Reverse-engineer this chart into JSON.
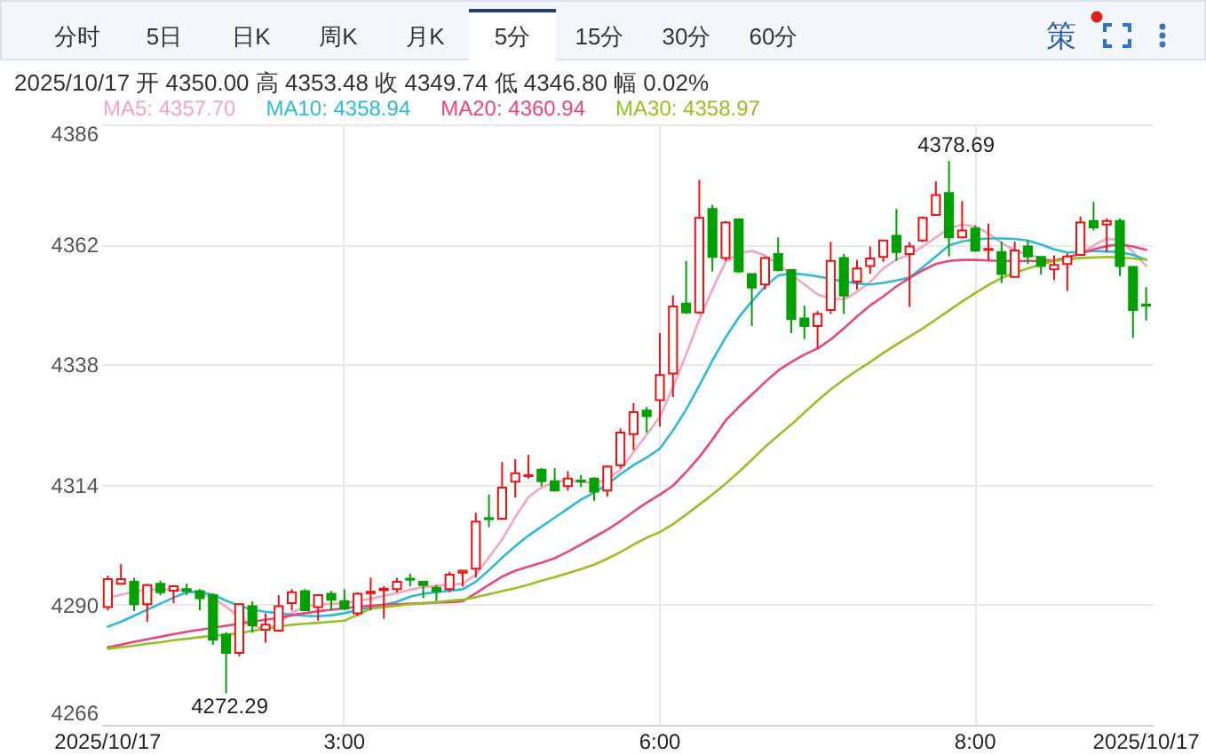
{
  "chart_data": {
    "type": "candlestick",
    "title": "2025/10/17 开 4350.00 高 4353.48 收 4349.74 低 4346.80 幅 0.02%",
    "categories": [
      "2025/10/17",
      null,
      null,
      null,
      null,
      null,
      null,
      null,
      null,
      null,
      null,
      null,
      null,
      null,
      null,
      null,
      null,
      null,
      "3:00",
      null,
      null,
      null,
      null,
      null,
      null,
      null,
      null,
      null,
      null,
      null,
      null,
      null,
      null,
      null,
      null,
      null,
      null,
      null,
      null,
      null,
      null,
      null,
      "6:00",
      null,
      null,
      null,
      null,
      null,
      null,
      null,
      null,
      null,
      null,
      null,
      null,
      null,
      null,
      null,
      null,
      null,
      null,
      null,
      null,
      null,
      null,
      null,
      "8:00",
      null,
      null,
      null,
      null,
      null,
      null,
      null,
      null,
      null,
      null,
      null,
      null,
      "2025/10/17"
    ],
    "ohlc": [
      [
        4289.5,
        4295.8,
        4288.9,
        4295.1
      ],
      [
        4294.2,
        4298.1,
        4294.0,
        4295.1
      ],
      [
        4294.6,
        4295.4,
        4288.7,
        4290.1
      ],
      [
        4290.1,
        4294.2,
        4286.6,
        4293.9
      ],
      [
        4294.2,
        4294.8,
        4291.9,
        4292.5
      ],
      [
        4292.8,
        4293.9,
        4290.3,
        4293.7
      ],
      [
        4293.1,
        4294.2,
        4291.9,
        4292.7
      ],
      [
        4292.7,
        4293.1,
        4288.9,
        4291.3
      ],
      [
        4291.9,
        4292.2,
        4282.0,
        4283.0
      ],
      [
        4284.0,
        4284.5,
        4272.29,
        4280.4
      ],
      [
        4280.4,
        4290.3,
        4279.7,
        4290.1
      ],
      [
        4289.7,
        4290.7,
        4284.4,
        4285.9
      ],
      [
        4285.0,
        4288.3,
        4282.4,
        4286.0
      ],
      [
        4284.8,
        4291.9,
        4284.8,
        4289.7
      ],
      [
        4290.3,
        4293.1,
        4288.9,
        4292.5
      ],
      [
        4292.7,
        4293.1,
        4288.7,
        4288.9
      ],
      [
        4289.5,
        4292.0,
        4286.8,
        4291.9
      ],
      [
        4292.2,
        4292.7,
        4288.9,
        4291.0
      ],
      [
        4290.7,
        4293.1,
        4288.9,
        4289.2
      ],
      [
        4288.3,
        4292.5,
        4287.7,
        4292.2
      ],
      [
        4292.3,
        4295.4,
        4288.9,
        4292.6
      ],
      [
        4292.9,
        4293.7,
        4287.2,
        4293.2
      ],
      [
        4293.1,
        4295.4,
        4292.5,
        4294.6
      ],
      [
        4295.2,
        4296.2,
        4293.7,
        4295.0
      ],
      [
        4294.6,
        4294.8,
        4291.3,
        4293.9
      ],
      [
        4293.4,
        4293.9,
        4290.7,
        4292.7
      ],
      [
        4293.1,
        4296.6,
        4292.5,
        4296.0
      ],
      [
        4296.4,
        4296.9,
        4293.6,
        4296.8
      ],
      [
        4297.2,
        4308.4,
        4295.4,
        4306.6
      ],
      [
        4307.3,
        4312.0,
        4305.5,
        4307.1
      ],
      [
        4307.2,
        4318.5,
        4306.9,
        4313.4
      ],
      [
        4314.6,
        4319.1,
        4311.4,
        4316.3
      ],
      [
        4315.7,
        4319.9,
        4315.2,
        4315.9
      ],
      [
        4317.0,
        4317.3,
        4313.7,
        4314.7
      ],
      [
        4314.7,
        4317.3,
        4312.6,
        4312.8
      ],
      [
        4313.7,
        4316.7,
        4312.8,
        4315.2
      ],
      [
        4314.8,
        4315.9,
        4313.5,
        4314.6
      ],
      [
        4315.2,
        4315.5,
        4310.8,
        4312.6
      ],
      [
        4312.8,
        4317.8,
        4311.6,
        4317.6
      ],
      [
        4317.9,
        4325.2,
        4317.3,
        4324.4
      ],
      [
        4324.1,
        4330.3,
        4320.9,
        4328.5
      ],
      [
        4328.8,
        4329.5,
        4324.4,
        4327.7
      ],
      [
        4330.9,
        4344.3,
        4325.6,
        4335.9
      ],
      [
        4336.2,
        4351.8,
        4331.5,
        4349.6
      ],
      [
        4350.2,
        4358.7,
        4348.1,
        4348.4
      ],
      [
        4348.4,
        4374.9,
        4348.1,
        4367.3
      ],
      [
        4369.1,
        4369.9,
        4356.6,
        4359.5
      ],
      [
        4359.3,
        4366.7,
        4358.7,
        4366.4
      ],
      [
        4367.0,
        4367.0,
        4356.3,
        4356.6
      ],
      [
        4356.1,
        4356.1,
        4345.7,
        4353.4
      ],
      [
        4354.0,
        4359.6,
        4353.0,
        4359.3
      ],
      [
        4360.1,
        4363.4,
        4356.6,
        4356.9
      ],
      [
        4356.9,
        4357.0,
        4344.3,
        4347.1
      ],
      [
        4347.2,
        4349.8,
        4343.1,
        4345.7
      ],
      [
        4345.7,
        4348.7,
        4341.2,
        4348.1
      ],
      [
        4348.9,
        4362.5,
        4348.1,
        4358.7
      ],
      [
        4359.3,
        4360.1,
        4348.1,
        4351.8
      ],
      [
        4354.6,
        4358.9,
        4353.0,
        4357.2
      ],
      [
        4357.7,
        4361.6,
        4356.1,
        4359.2
      ],
      [
        4359.5,
        4362.8,
        4358.5,
        4362.8
      ],
      [
        4363.7,
        4369.1,
        4358.7,
        4360.5
      ],
      [
        4360.1,
        4362.5,
        4349.5,
        4361.6
      ],
      [
        4362.8,
        4367.6,
        4362.5,
        4367.3
      ],
      [
        4367.9,
        4374.6,
        4367.9,
        4371.9
      ],
      [
        4372.3,
        4378.69,
        4359.6,
        4363.4
      ],
      [
        4363.4,
        4370.7,
        4363.2,
        4364.8
      ],
      [
        4365.2,
        4365.8,
        4360.5,
        4360.8
      ],
      [
        4360.9,
        4366.1,
        4358.9,
        4361.1
      ],
      [
        4360.5,
        4362.6,
        4354.3,
        4356.1
      ],
      [
        4355.5,
        4362.6,
        4355.5,
        4360.8
      ],
      [
        4361.6,
        4362.8,
        4358.1,
        4359.6
      ],
      [
        4359.5,
        4359.5,
        4356.0,
        4357.7
      ],
      [
        4357.0,
        4359.8,
        4354.9,
        4357.9
      ],
      [
        4358.1,
        4360.2,
        4352.7,
        4359.6
      ],
      [
        4359.9,
        4367.6,
        4359.9,
        4366.4
      ],
      [
        4366.7,
        4370.5,
        4364.8,
        4365.4
      ],
      [
        4366.0,
        4367.2,
        4360.5,
        4366.7
      ],
      [
        4366.7,
        4367.2,
        4355.7,
        4357.7
      ],
      [
        4357.5,
        4357.5,
        4343.3,
        4348.9
      ],
      [
        4350.0,
        4353.48,
        4346.8,
        4349.74
      ]
    ],
    "colors": [
      "#ee1111",
      "#ee1111",
      "#00a000",
      "#ee1111",
      "#00a000",
      "#ee1111",
      "#00a000",
      "#00a000",
      "#00a000",
      "#00a000",
      "#ee1111",
      "#00a000",
      "#ee1111",
      "#ee1111",
      "#ee1111",
      "#00a000",
      "#ee1111",
      "#00a000",
      "#00a000",
      "#ee1111",
      "#ee1111",
      "#ee1111",
      "#ee1111",
      "#00a000",
      "#00a000",
      "#00a000",
      "#ee1111",
      "#ee1111",
      "#ee1111",
      "#00a000",
      "#ee1111",
      "#ee1111",
      "#ee1111",
      "#00a000",
      "#00a000",
      "#ee1111",
      "#00a000",
      "#00a000",
      "#ee1111",
      "#ee1111",
      "#ee1111",
      "#00a000",
      "#ee1111",
      "#ee1111",
      "#00a000",
      "#ee1111",
      "#00a000",
      "#ee1111",
      "#00a000",
      "#00a000",
      "#ee1111",
      "#00a000",
      "#00a000",
      "#00a000",
      "#ee1111",
      "#ee1111",
      "#00a000",
      "#ee1111",
      "#ee1111",
      "#ee1111",
      "#00a000",
      "#ee1111",
      "#ee1111",
      "#ee1111",
      "#00a000",
      "#ee1111",
      "#00a000",
      "#ee1111",
      "#00a000",
      "#ee1111",
      "#00a000",
      "#00a000",
      "#ee1111",
      "#ee1111",
      "#ee1111",
      "#00a000",
      "#ee1111",
      "#00a000",
      "#00a000",
      "#00a000"
    ],
    "series": [
      {
        "type": "line",
        "name": "MA5: 4357.70",
        "color": "#f7a3c2",
        "values": [
          4291.3,
          4292.0,
          4292.6,
          4293.0,
          4293.1,
          4293.0,
          4292.8,
          4292.3,
          4291.4,
          4289.6,
          4287.6,
          4285.8,
          4285.1,
          4286.2,
          4288.4,
          4289.7,
          4290.0,
          4290.2,
          4290.3,
          4290.7,
          4291.2,
          4291.8,
          4292.3,
          4293.0,
          4293.5,
          4293.8,
          4294.0,
          4294.2,
          4296.0,
          4299.5,
          4303.0,
          4307.5,
          4311.5,
          4313.5,
          4314.5,
          4314.9,
          4314.6,
          4314.3,
          4315.0,
          4317.0,
          4320.5,
          4324.0,
          4327.5,
          4333.5,
          4340.0,
          4347.0,
          4353.0,
          4358.5,
          4360.2,
          4360.7,
          4359.8,
          4358.1,
          4356.0,
          4354.0,
          4352.0,
          4351.2,
          4351.0,
          4352.5,
          4354.5,
          4357.2,
          4359.0,
          4359.9,
          4361.6,
          4363.4,
          4365.2,
          4366.0,
          4365.6,
          4364.2,
          4362.3,
          4360.8,
          4360.0,
          4359.3,
          4358.7,
          4359.2,
          4360.1,
          4361.8,
          4363.2,
          4362.8,
          4360.5,
          4357.7
        ]
      },
      {
        "type": "line",
        "name": "MA10: 4358.94",
        "color": "#2dbad9",
        "values": [
          4285.6,
          4286.6,
          4287.8,
          4289.0,
          4290.2,
          4291.4,
          4292.5,
          4292.6,
          4292.0,
          4290.8,
          4289.8,
          4289.0,
          4288.6,
          4288.3,
          4288.0,
          4287.8,
          4287.7,
          4287.9,
          4288.3,
          4288.9,
          4289.5,
          4290.0,
          4290.6,
          4291.6,
          4292.2,
          4292.5,
          4292.8,
          4293.1,
          4294.6,
          4296.9,
          4299.4,
          4301.7,
          4303.8,
          4305.6,
          4307.4,
          4309.2,
          4311.0,
          4312.4,
          4314.0,
          4316.1,
          4317.9,
          4319.4,
          4321.2,
          4324.8,
          4329.0,
          4333.8,
          4338.8,
          4343.4,
          4347.4,
          4350.6,
          4353.6,
          4355.8,
          4356.2,
          4356.0,
          4355.6,
          4355.1,
          4354.6,
          4354.2,
          4354.0,
          4354.3,
          4354.8,
          4355.4,
          4357.4,
          4359.6,
          4361.8,
          4362.6,
          4363.0,
          4363.2,
          4363.2,
          4363.1,
          4362.8,
          4362.0,
          4361.0,
          4360.4,
          4360.5,
          4360.7,
          4360.6,
          4360.5,
          4359.9,
          4358.94
        ]
      },
      {
        "type": "line",
        "name": "MA20: 4360.94",
        "color": "#e8467c",
        "values": [
          4281.5,
          4282.0,
          4282.6,
          4283.1,
          4283.6,
          4284.1,
          4284.6,
          4285.0,
          4285.4,
          4285.8,
          4286.2,
          4286.6,
          4287.0,
          4287.4,
          4287.9,
          4288.3,
          4288.7,
          4289.0,
          4289.3,
          4289.6,
          4289.8,
          4290.0,
          4290.1,
          4290.2,
          4290.3,
          4290.4,
          4290.5,
          4290.7,
          4292.3,
          4294.0,
          4295.6,
          4296.8,
          4297.6,
          4298.4,
          4299.3,
          4300.6,
          4302.0,
          4303.5,
          4305.0,
          4306.7,
          4308.6,
          4310.4,
          4312.0,
          4313.8,
          4316.5,
          4319.5,
          4323.0,
          4326.8,
          4329.5,
          4332.0,
          4334.5,
          4336.8,
          4338.5,
          4340.0,
          4341.2,
          4343.0,
          4345.2,
          4347.6,
          4349.8,
          4351.6,
          4353.6,
          4355.3,
          4356.8,
          4358.1,
          4358.7,
          4358.9,
          4358.9,
          4358.8,
          4358.7,
          4358.7,
          4358.7,
          4358.7,
          4358.8,
          4359.4,
          4360.2,
          4361.0,
          4361.7,
          4362.0,
          4361.6,
          4360.94
        ]
      },
      {
        "type": "line",
        "name": "MA30: 4358.97",
        "color": "#95c123",
        "values": [
          4281.2,
          4281.5,
          4281.8,
          4282.2,
          4282.5,
          4282.9,
          4283.2,
          4283.5,
          4283.8,
          4284.0,
          4284.3,
          4284.8,
          4285.2,
          4285.6,
          4286.0,
          4286.2,
          4286.4,
          4286.6,
          4286.8,
          4288.0,
          4289.2,
          4289.5,
          4289.8,
          4290.1,
          4290.3,
          4290.5,
          4290.8,
          4291.0,
          4291.5,
          4292.1,
          4292.7,
          4293.3,
          4294.0,
          4294.8,
          4295.5,
          4296.3,
          4297.1,
          4298.0,
          4299.2,
          4300.5,
          4302.0,
          4303.4,
          4304.5,
          4306.1,
          4308.0,
          4310.0,
          4312.0,
          4314.2,
          4316.5,
          4319.0,
          4321.5,
          4323.8,
          4326.0,
          4328.4,
          4330.8,
          4333.0,
          4335.0,
          4336.8,
          4338.5,
          4340.3,
          4342.0,
          4343.6,
          4345.2,
          4347.0,
          4348.8,
          4350.6,
          4352.3,
          4353.9,
          4355.3,
          4356.3,
          4357.2,
          4358.0,
          4358.7,
          4359.0,
          4359.3,
          4359.4,
          4359.5,
          4359.4,
          4359.2,
          4358.97
        ]
      }
    ],
    "ylim": [
      4266,
      4386
    ],
    "yticks": [
      4266,
      4290,
      4314,
      4338,
      4362,
      4386
    ],
    "grid": true,
    "legend": "top left",
    "line_style": "solid",
    "annotations": [
      "分时",
      "5日",
      "日K",
      "周K",
      "月K",
      "5分",
      "15分",
      "30分",
      "60分",
      "策",
      {
        "text": "4378.69",
        "y": 4378.69
      },
      {
        "text": "4272.29",
        "y": 4272.29
      }
    ]
  }
}
